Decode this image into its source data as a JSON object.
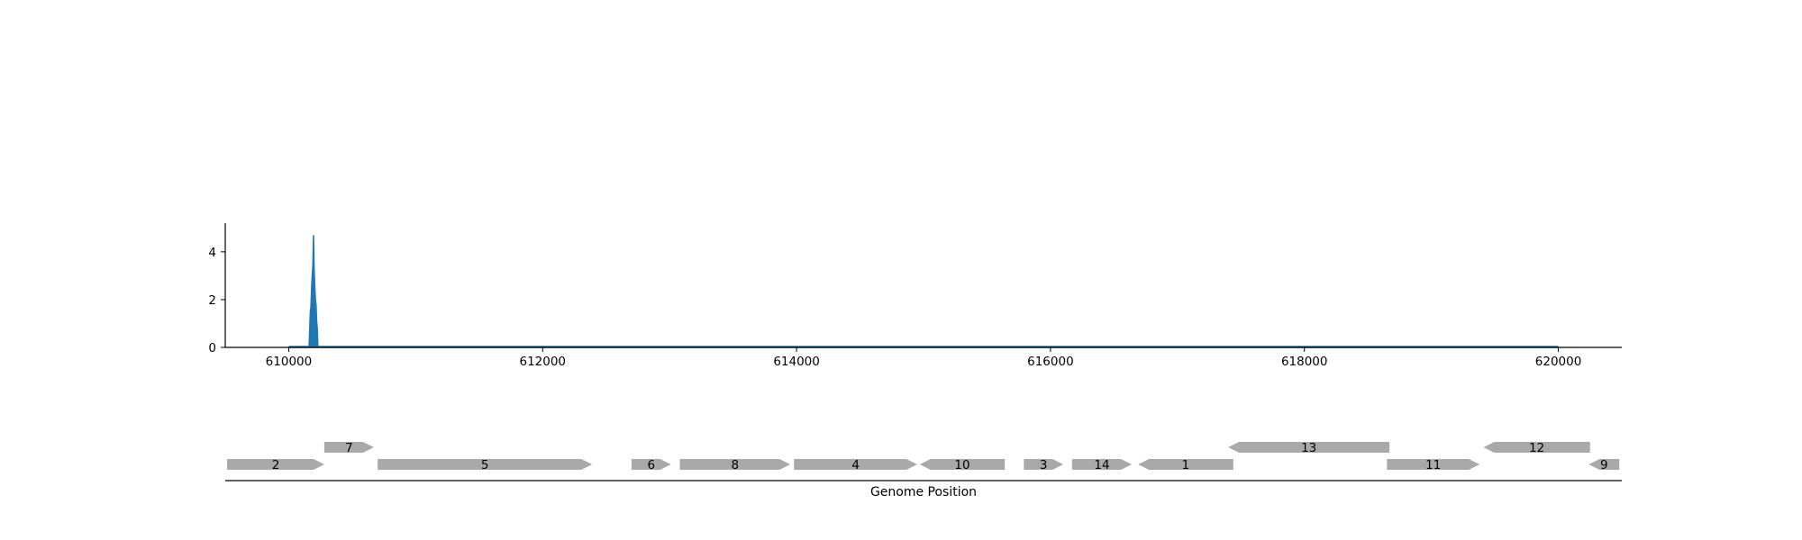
{
  "chart_data": [
    {
      "type": "area",
      "title": "",
      "xlabel": "",
      "ylabel": "",
      "xlim": [
        609500,
        620500
      ],
      "ylim": [
        0,
        5.2
      ],
      "x_ticks": [
        610000,
        612000,
        614000,
        616000,
        618000,
        620000
      ],
      "x_tick_labels": [
        "610000",
        "612000",
        "614000",
        "616000",
        "618000",
        "620000"
      ],
      "y_ticks": [
        0,
        2,
        4
      ],
      "y_tick_labels": [
        "0",
        "2",
        "4"
      ],
      "grid": false,
      "color": "#1f77b4",
      "coverage_range": [
        610000,
        620000
      ],
      "series": [
        {
          "x": [
            610000,
            610150,
            610160,
            610170,
            610175,
            610180,
            610185,
            610190,
            610195,
            610200,
            610205,
            610210,
            610215,
            610220,
            610225,
            610230,
            610240,
            620000
          ],
          "values": [
            0,
            0,
            0,
            1.5,
            1.7,
            2.5,
            3.0,
            3.4,
            4.7,
            3.3,
            2.6,
            2.0,
            1.8,
            1.1,
            0.8,
            0,
            0,
            0
          ]
        }
      ]
    },
    {
      "type": "gene_track",
      "xlabel": "Genome Position",
      "xlim": [
        609500,
        620500
      ],
      "genes": [
        {
          "label": "2",
          "start": 609515,
          "end": 610280,
          "strand": "+",
          "row": 0
        },
        {
          "label": "7",
          "start": 610280,
          "end": 610670,
          "strand": "+",
          "row": 1
        },
        {
          "label": "5",
          "start": 610700,
          "end": 612390,
          "strand": "+",
          "row": 0
        },
        {
          "label": "6",
          "start": 612700,
          "end": 613010,
          "strand": "+",
          "row": 0
        },
        {
          "label": "8",
          "start": 613080,
          "end": 613950,
          "strand": "+",
          "row": 0
        },
        {
          "label": "4",
          "start": 613980,
          "end": 614950,
          "strand": "+",
          "row": 0
        },
        {
          "label": "10",
          "start": 614970,
          "end": 615640,
          "strand": "-",
          "row": 0
        },
        {
          "label": "3",
          "start": 615790,
          "end": 616100,
          "strand": "+",
          "row": 0
        },
        {
          "label": "14",
          "start": 616170,
          "end": 616640,
          "strand": "+",
          "row": 0
        },
        {
          "label": "1",
          "start": 616690,
          "end": 617440,
          "strand": "-",
          "row": 0
        },
        {
          "label": "13",
          "start": 617400,
          "end": 618670,
          "strand": "-",
          "row": 1
        },
        {
          "label": "11",
          "start": 618650,
          "end": 619380,
          "strand": "+",
          "row": 0
        },
        {
          "label": "12",
          "start": 619410,
          "end": 620250,
          "strand": "-",
          "row": 1
        },
        {
          "label": "9",
          "start": 620240,
          "end": 620480,
          "strand": "-",
          "row": 0
        }
      ]
    }
  ]
}
